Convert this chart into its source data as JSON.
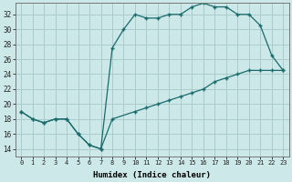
{
  "xlabel": "Humidex (Indice chaleur)",
  "background_color": "#cce8e8",
  "grid_color": "#aacccc",
  "line_color": "#1a6b6b",
  "xlim": [
    -0.5,
    23.5
  ],
  "ylim": [
    13,
    33.5
  ],
  "yticks": [
    14,
    16,
    18,
    20,
    22,
    24,
    26,
    28,
    30,
    32
  ],
  "xticks": [
    0,
    1,
    2,
    3,
    4,
    5,
    6,
    7,
    8,
    9,
    10,
    11,
    12,
    13,
    14,
    15,
    16,
    17,
    18,
    19,
    20,
    21,
    22,
    23
  ],
  "line1_x": [
    0,
    1,
    2,
    3,
    4,
    5,
    6,
    7,
    8,
    9,
    10,
    11,
    12,
    13,
    14,
    15,
    16,
    17,
    18,
    19,
    20,
    21,
    22,
    23
  ],
  "line1_y": [
    19,
    18,
    17.5,
    18,
    18,
    16,
    14.5,
    14,
    27.5,
    30,
    32,
    31.5,
    31.5,
    32,
    32,
    33,
    33.5,
    33,
    33,
    32,
    32,
    30.5,
    26.5,
    24.5
  ],
  "line2_x": [
    0,
    1,
    2,
    3,
    4,
    5,
    6,
    7,
    8,
    10,
    11,
    12,
    13,
    14,
    15,
    16,
    17,
    18,
    19,
    20,
    21,
    22,
    23
  ],
  "line2_y": [
    19,
    18,
    17.5,
    18,
    18,
    16,
    14.5,
    14,
    18,
    19,
    19.5,
    20,
    20.5,
    21,
    21.5,
    22,
    23,
    23.5,
    24,
    24.5,
    24.5,
    24.5,
    24.5
  ]
}
